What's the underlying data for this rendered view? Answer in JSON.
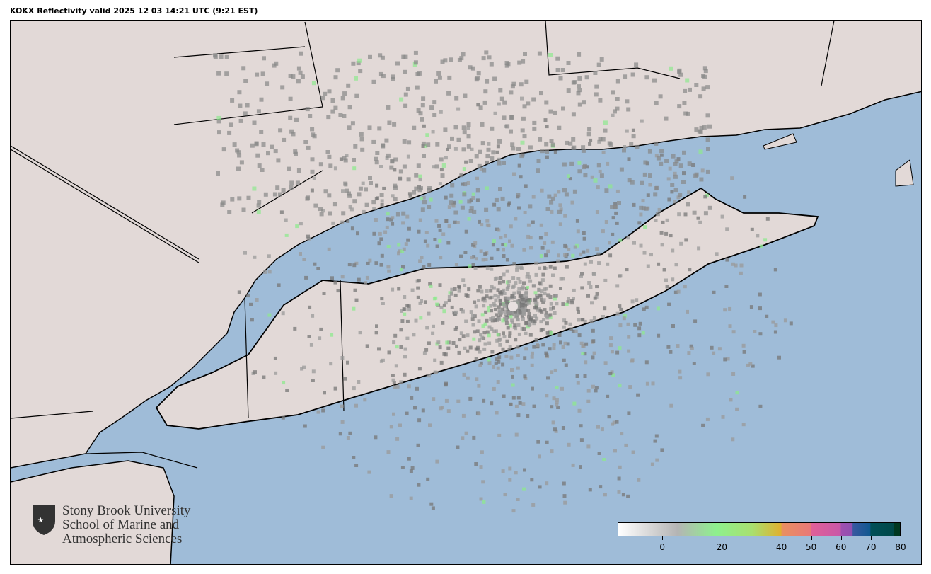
{
  "title": "KOKX Reflectivity valid 2025 12 03 14:21 UTC (9:21 EST)",
  "map": {
    "radar_site": "KOKX",
    "product": "Reflectivity",
    "colors": {
      "water": "#9fbcd8",
      "land": "#e2d9d7",
      "borders": "#000000"
    }
  },
  "logo": {
    "line1": "Stony Brook University",
    "line2": "School of Marine and",
    "line3": "Atmospheric Sciences"
  },
  "colorbar": {
    "range": [
      -15,
      80
    ],
    "ticks": [
      "0",
      "20",
      "40",
      "50",
      "60",
      "70",
      "80"
    ],
    "tick_values": [
      0,
      20,
      40,
      50,
      60,
      70,
      80
    ],
    "stops": [
      {
        "v": -15,
        "c": "#ffffff"
      },
      {
        "v": 5,
        "c": "#b4b4b4"
      },
      {
        "v": 18,
        "c": "#8ef08e"
      },
      {
        "v": 30,
        "c": "#a8e070"
      },
      {
        "v": 40,
        "c": "#e0b030"
      },
      {
        "v": 40.1,
        "c": "#e89060"
      },
      {
        "v": 50,
        "c": "#e87878"
      },
      {
        "v": 50.1,
        "c": "#e06098"
      },
      {
        "v": 60,
        "c": "#c858a8"
      },
      {
        "v": 60.1,
        "c": "#a050b0"
      },
      {
        "v": 64,
        "c": "#9050b0"
      },
      {
        "v": 64.1,
        "c": "#3858a0"
      },
      {
        "v": 70,
        "c": "#105890"
      },
      {
        "v": 70.1,
        "c": "#005058"
      },
      {
        "v": 78,
        "c": "#004848"
      },
      {
        "v": 78.1,
        "c": "#003820"
      },
      {
        "v": 80,
        "c": "#003820"
      }
    ]
  }
}
